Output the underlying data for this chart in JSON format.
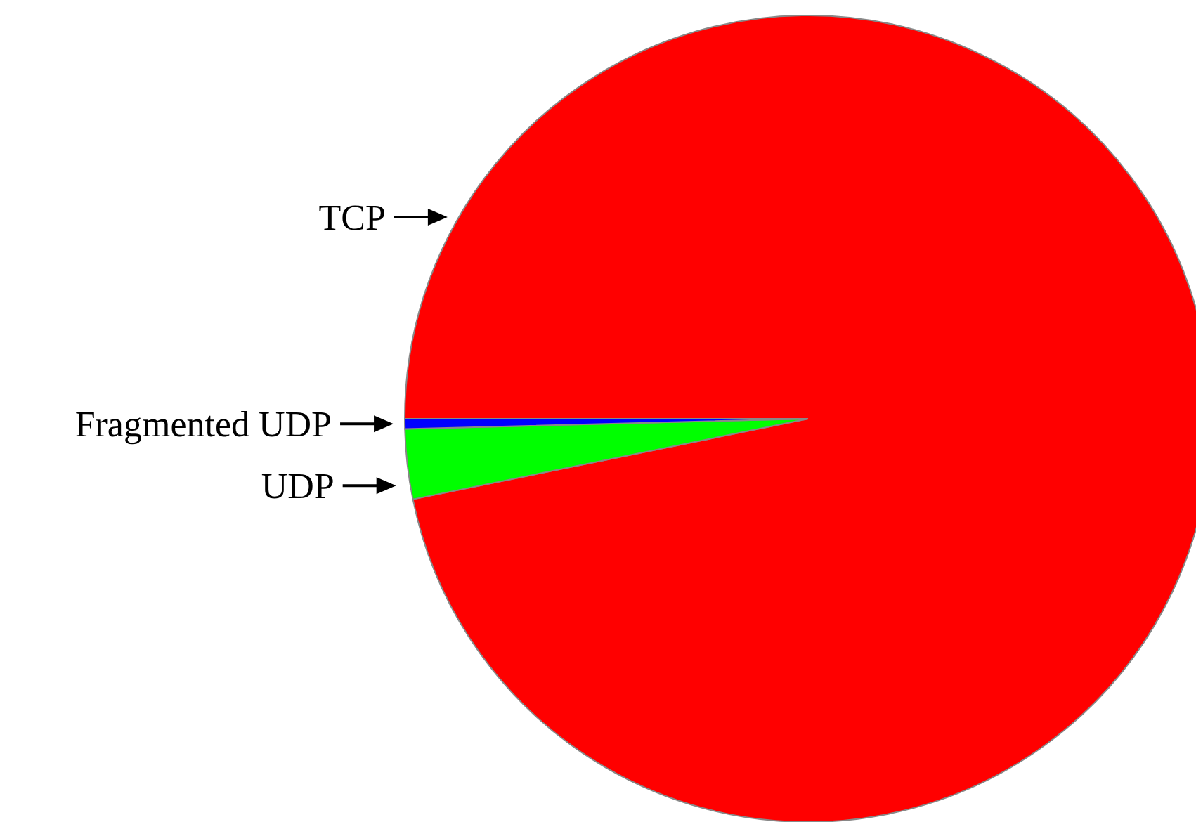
{
  "chart_data": {
    "type": "pie",
    "categories": [
      "TCP",
      "UDP",
      "Fragmented UDP"
    ],
    "values": [
      96.8,
      2.8,
      0.4
    ],
    "colors": [
      "#ff0000",
      "#00ff00",
      "#0000ff"
    ]
  }
}
